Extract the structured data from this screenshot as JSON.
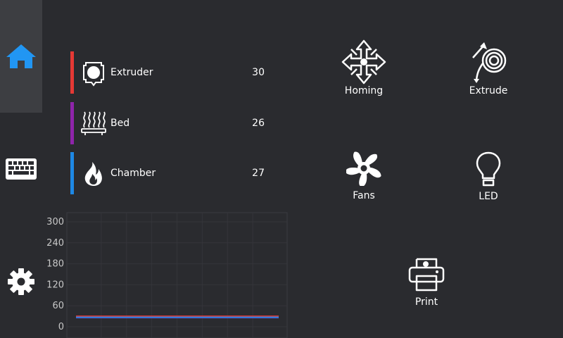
{
  "temperatures": [
    {
      "label": "Extruder",
      "value": "30",
      "color": "#e53935",
      "icon": "extruder-icon"
    },
    {
      "label": "Bed",
      "value": "26",
      "color": "#8e24aa",
      "icon": "bed-heat-icon"
    },
    {
      "label": "Chamber",
      "value": "27",
      "color": "#1e88e5",
      "icon": "chamber-flame-icon"
    }
  ],
  "sidebar": {
    "items": [
      {
        "icon": "home-icon",
        "active": true
      },
      {
        "icon": "keyboard-icon",
        "active": false
      },
      {
        "icon": "gear-icon",
        "active": false
      }
    ],
    "accent": "#2196f3"
  },
  "actions": {
    "homing": "Homing",
    "extrude": "Extrude",
    "fans": "Fans",
    "led": "LED",
    "print": "Print"
  },
  "chart_data": {
    "type": "line",
    "yticks": [
      0,
      60,
      120,
      180,
      240,
      300
    ],
    "ylim": [
      0,
      300
    ],
    "grid": true,
    "series": [
      {
        "color": "#e53935",
        "values": [
          30,
          30,
          30,
          30,
          30,
          30,
          30,
          30
        ]
      },
      {
        "color": "#8e24aa",
        "values": [
          26,
          26,
          26,
          26,
          26,
          26,
          26,
          26
        ]
      },
      {
        "color": "#1e88e5",
        "values": [
          27,
          27,
          27,
          27,
          27,
          27,
          27,
          27
        ]
      }
    ]
  }
}
